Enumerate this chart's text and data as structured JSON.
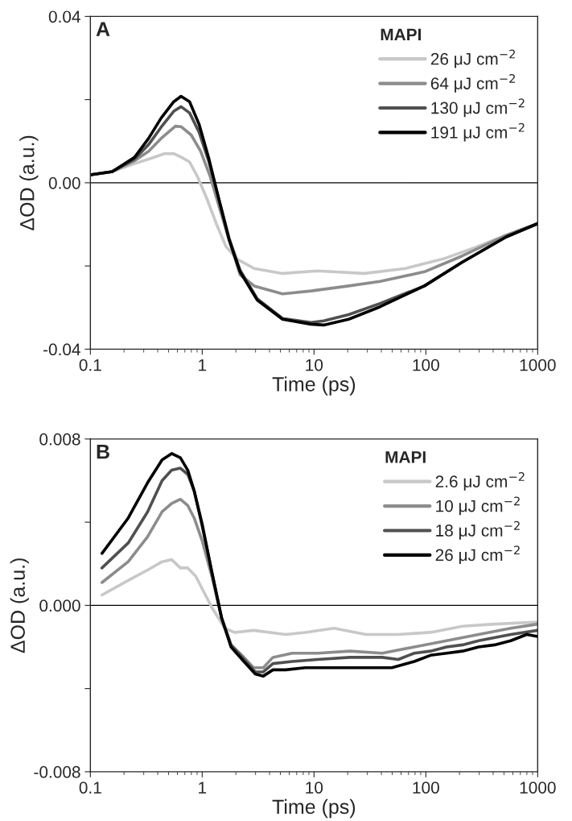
{
  "chart_data": [
    {
      "type": "line",
      "xlabel": "Time (ps)",
      "ylabel": "ΔOD (a.u.)",
      "legend_title": "MAPI",
      "legend": "top right",
      "log": "x",
      "grid": false,
      "marker": "none",
      "line_style": "solid",
      "annotations": [
        "A"
      ],
      "xlim": [
        0.1,
        1000
      ],
      "xticks": [
        0.1,
        1,
        10,
        100,
        1000
      ],
      "ylim": [
        -0.04,
        0.04
      ],
      "yticks": [
        {
          "value": -0.04,
          "label": "-0.04"
        },
        {
          "value": -0.02,
          "label": null
        },
        {
          "value": 0,
          "label": "0.00"
        },
        {
          "value": 0.02,
          "label": null
        },
        {
          "value": 0.04,
          "label": "0.04"
        }
      ],
      "ref_lines": [
        {
          "axis": "y",
          "value": 0,
          "color": "#000000"
        }
      ],
      "series": [
        {
          "name": "26 μJ cm$^{−2}$",
          "color": "#c8c8c8",
          "x": [
            0.1,
            0.157,
            0.248,
            0.332,
            0.459,
            0.557,
            0.656,
            0.771,
            0.907,
            1.1,
            1.34,
            1.63,
            2.04,
            2.92,
            5.23,
            10.7,
            28.2,
            65.6,
            143,
            273,
            523,
            1000
          ],
          "values": [
            0.0019,
            0.0027,
            0.0046,
            0.0057,
            0.007,
            0.007,
            0.0061,
            0.005,
            0.0015,
            -0.0038,
            -0.0099,
            -0.0153,
            -0.0183,
            -0.0206,
            -0.0218,
            -0.0212,
            -0.0218,
            -0.0206,
            -0.0183,
            -0.0156,
            -0.0126,
            -0.0098
          ]
        },
        {
          "name": "64 μJ cm$^{−2}$",
          "color": "#8c8c8c",
          "x": [
            0.1,
            0.157,
            0.248,
            0.332,
            0.43,
            0.576,
            0.647,
            0.797,
            0.968,
            1.18,
            1.43,
            1.74,
            2.18,
            2.92,
            5.23,
            9.4,
            20.4,
            39,
            97,
            211,
            523,
            1000
          ],
          "values": [
            0.0019,
            0.0027,
            0.0053,
            0.0076,
            0.0107,
            0.0136,
            0.0135,
            0.0115,
            0.0076,
            0.0015,
            -0.0061,
            -0.0137,
            -0.0221,
            -0.0248,
            -0.0267,
            -0.026,
            -0.0248,
            -0.0237,
            -0.0214,
            -0.0176,
            -0.0126,
            -0.0098
          ]
        },
        {
          "name": "130 μJ cm$^{−2}$",
          "color": "#505050",
          "x": [
            0.1,
            0.157,
            0.248,
            0.332,
            0.43,
            0.557,
            0.647,
            0.771,
            0.937,
            1.14,
            1.43,
            1.74,
            2.18,
            3.11,
            5.23,
            9.4,
            12.2,
            20.4,
            39,
            97,
            211,
            523,
            1000
          ],
          "values": [
            0.0019,
            0.0027,
            0.0057,
            0.0092,
            0.0134,
            0.0172,
            0.0183,
            0.0168,
            0.0122,
            0.0053,
            -0.0046,
            -0.0133,
            -0.021,
            -0.0279,
            -0.0326,
            -0.0336,
            -0.0332,
            -0.0317,
            -0.029,
            -0.0248,
            -0.0191,
            -0.013,
            -0.0098
          ]
        },
        {
          "name": "191 μJ cm$^{−2}$",
          "color": "#000000",
          "x": [
            0.1,
            0.157,
            0.248,
            0.332,
            0.43,
            0.557,
            0.647,
            0.771,
            0.937,
            1.14,
            1.43,
            1.74,
            2.18,
            3.11,
            5.23,
            9.4,
            12.2,
            20.4,
            39,
            97,
            211,
            523,
            1000
          ],
          "values": [
            0.0019,
            0.0027,
            0.0061,
            0.0107,
            0.0156,
            0.0195,
            0.0208,
            0.0195,
            0.0141,
            0.0061,
            -0.0046,
            -0.0137,
            -0.0214,
            -0.0282,
            -0.0328,
            -0.034,
            -0.0342,
            -0.0328,
            -0.0298,
            -0.0248,
            -0.0191,
            -0.013,
            -0.0098
          ]
        }
      ]
    },
    {
      "type": "line",
      "xlabel": "Time (ps)",
      "ylabel": "ΔOD (a.u.)",
      "legend_title": "MAPI",
      "legend": "top right",
      "log": "x",
      "grid": false,
      "marker": "none",
      "line_style": "solid",
      "annotations": [
        "B"
      ],
      "xlim": [
        0.1,
        1000
      ],
      "xticks": [
        0.1,
        1,
        10,
        100,
        1000
      ],
      "ylim": [
        -0.008,
        0.008
      ],
      "yticks": [
        {
          "value": -0.008,
          "label": "-0.008"
        },
        {
          "value": -0.004,
          "label": null
        },
        {
          "value": 0,
          "label": "0.000"
        },
        {
          "value": 0.004,
          "label": null
        },
        {
          "value": 0.008,
          "label": "0.008"
        }
      ],
      "ref_lines": [
        {
          "axis": "y",
          "value": 0,
          "color": "#000000"
        }
      ],
      "series": [
        {
          "name": "2.6 μJ cm$^{−2}$",
          "color": "#c8c8c8",
          "x": [
            0.127,
            0.218,
            0.325,
            0.438,
            0.533,
            0.638,
            0.743,
            0.876,
            1,
            1.22,
            1.59,
            1.94,
            2.88,
            5.58,
            8.31,
            15.1,
            29.2,
            56.6,
            110,
            213,
            412,
            1000
          ],
          "values": [
            0.0005,
            0.0012,
            0.0017,
            0.0021,
            0.0022,
            0.0018,
            0.0018,
            0.0014,
            0.0008,
            -0.0001,
            -0.0011,
            -0.0013,
            -0.0012,
            -0.0014,
            -0.0013,
            -0.0011,
            -0.0014,
            -0.0014,
            -0.0013,
            -0.001,
            -0.0009,
            -0.0008
          ]
        },
        {
          "name": "10 μJ cm$^{−2}$",
          "color": "#8c8c8c",
          "x": [
            0.127,
            0.218,
            0.325,
            0.438,
            0.533,
            0.638,
            0.743,
            0.848,
            1,
            1.22,
            1.49,
            1.81,
            2.36,
            2.88,
            3.52,
            4.29,
            6.38,
            10.8,
            21,
            40.7,
            78.8,
            153,
            296,
            574,
            1000
          ],
          "values": [
            0.0011,
            0.0021,
            0.0033,
            0.0045,
            0.0049,
            0.0051,
            0.0048,
            0.0042,
            0.0031,
            0.0014,
            -0.0006,
            -0.0019,
            -0.0025,
            -0.003,
            -0.003,
            -0.0025,
            -0.0023,
            -0.0023,
            -0.0022,
            -0.0023,
            -0.002,
            -0.0017,
            -0.0014,
            -0.0011,
            -0.0009
          ]
        },
        {
          "name": "18 μJ cm$^{−2}$",
          "color": "#505050",
          "x": [
            0.127,
            0.218,
            0.325,
            0.438,
            0.533,
            0.638,
            0.743,
            0.848,
            1,
            1.22,
            1.49,
            1.81,
            2.36,
            2.98,
            3.52,
            4.29,
            6.38,
            10.8,
            21,
            40.7,
            56.6,
            78.8,
            110,
            153,
            213,
            296,
            574,
            1000
          ],
          "values": [
            0.0018,
            0.003,
            0.0045,
            0.006,
            0.0065,
            0.0066,
            0.0063,
            0.0055,
            0.0038,
            0.0016,
            -0.0006,
            -0.0019,
            -0.0026,
            -0.0032,
            -0.0032,
            -0.0028,
            -0.0027,
            -0.0026,
            -0.0025,
            -0.0025,
            -0.0026,
            -0.0023,
            -0.0022,
            -0.002,
            -0.0019,
            -0.0017,
            -0.0014,
            -0.0012
          ]
        },
        {
          "name": "26 μJ cm$^{−2}$",
          "color": "#000000",
          "x": [
            0.127,
            0.218,
            0.325,
            0.438,
            0.533,
            0.638,
            0.743,
            0.848,
            1,
            1.22,
            1.49,
            1.81,
            2.36,
            2.98,
            3.52,
            4.29,
            5.58,
            8.31,
            15.1,
            29.2,
            49.6,
            78.8,
            110,
            153,
            213,
            296,
            412,
            574,
            798,
            1000
          ],
          "values": [
            0.0025,
            0.0042,
            0.0059,
            0.007,
            0.0073,
            0.0071,
            0.0065,
            0.0055,
            0.0039,
            0.0016,
            -0.0006,
            -0.002,
            -0.0027,
            -0.0033,
            -0.0034,
            -0.0031,
            -0.0031,
            -0.003,
            -0.003,
            -0.003,
            -0.003,
            -0.0027,
            -0.0024,
            -0.0023,
            -0.0022,
            -0.002,
            -0.0019,
            -0.0017,
            -0.0014,
            -0.0015
          ]
        }
      ]
    }
  ]
}
